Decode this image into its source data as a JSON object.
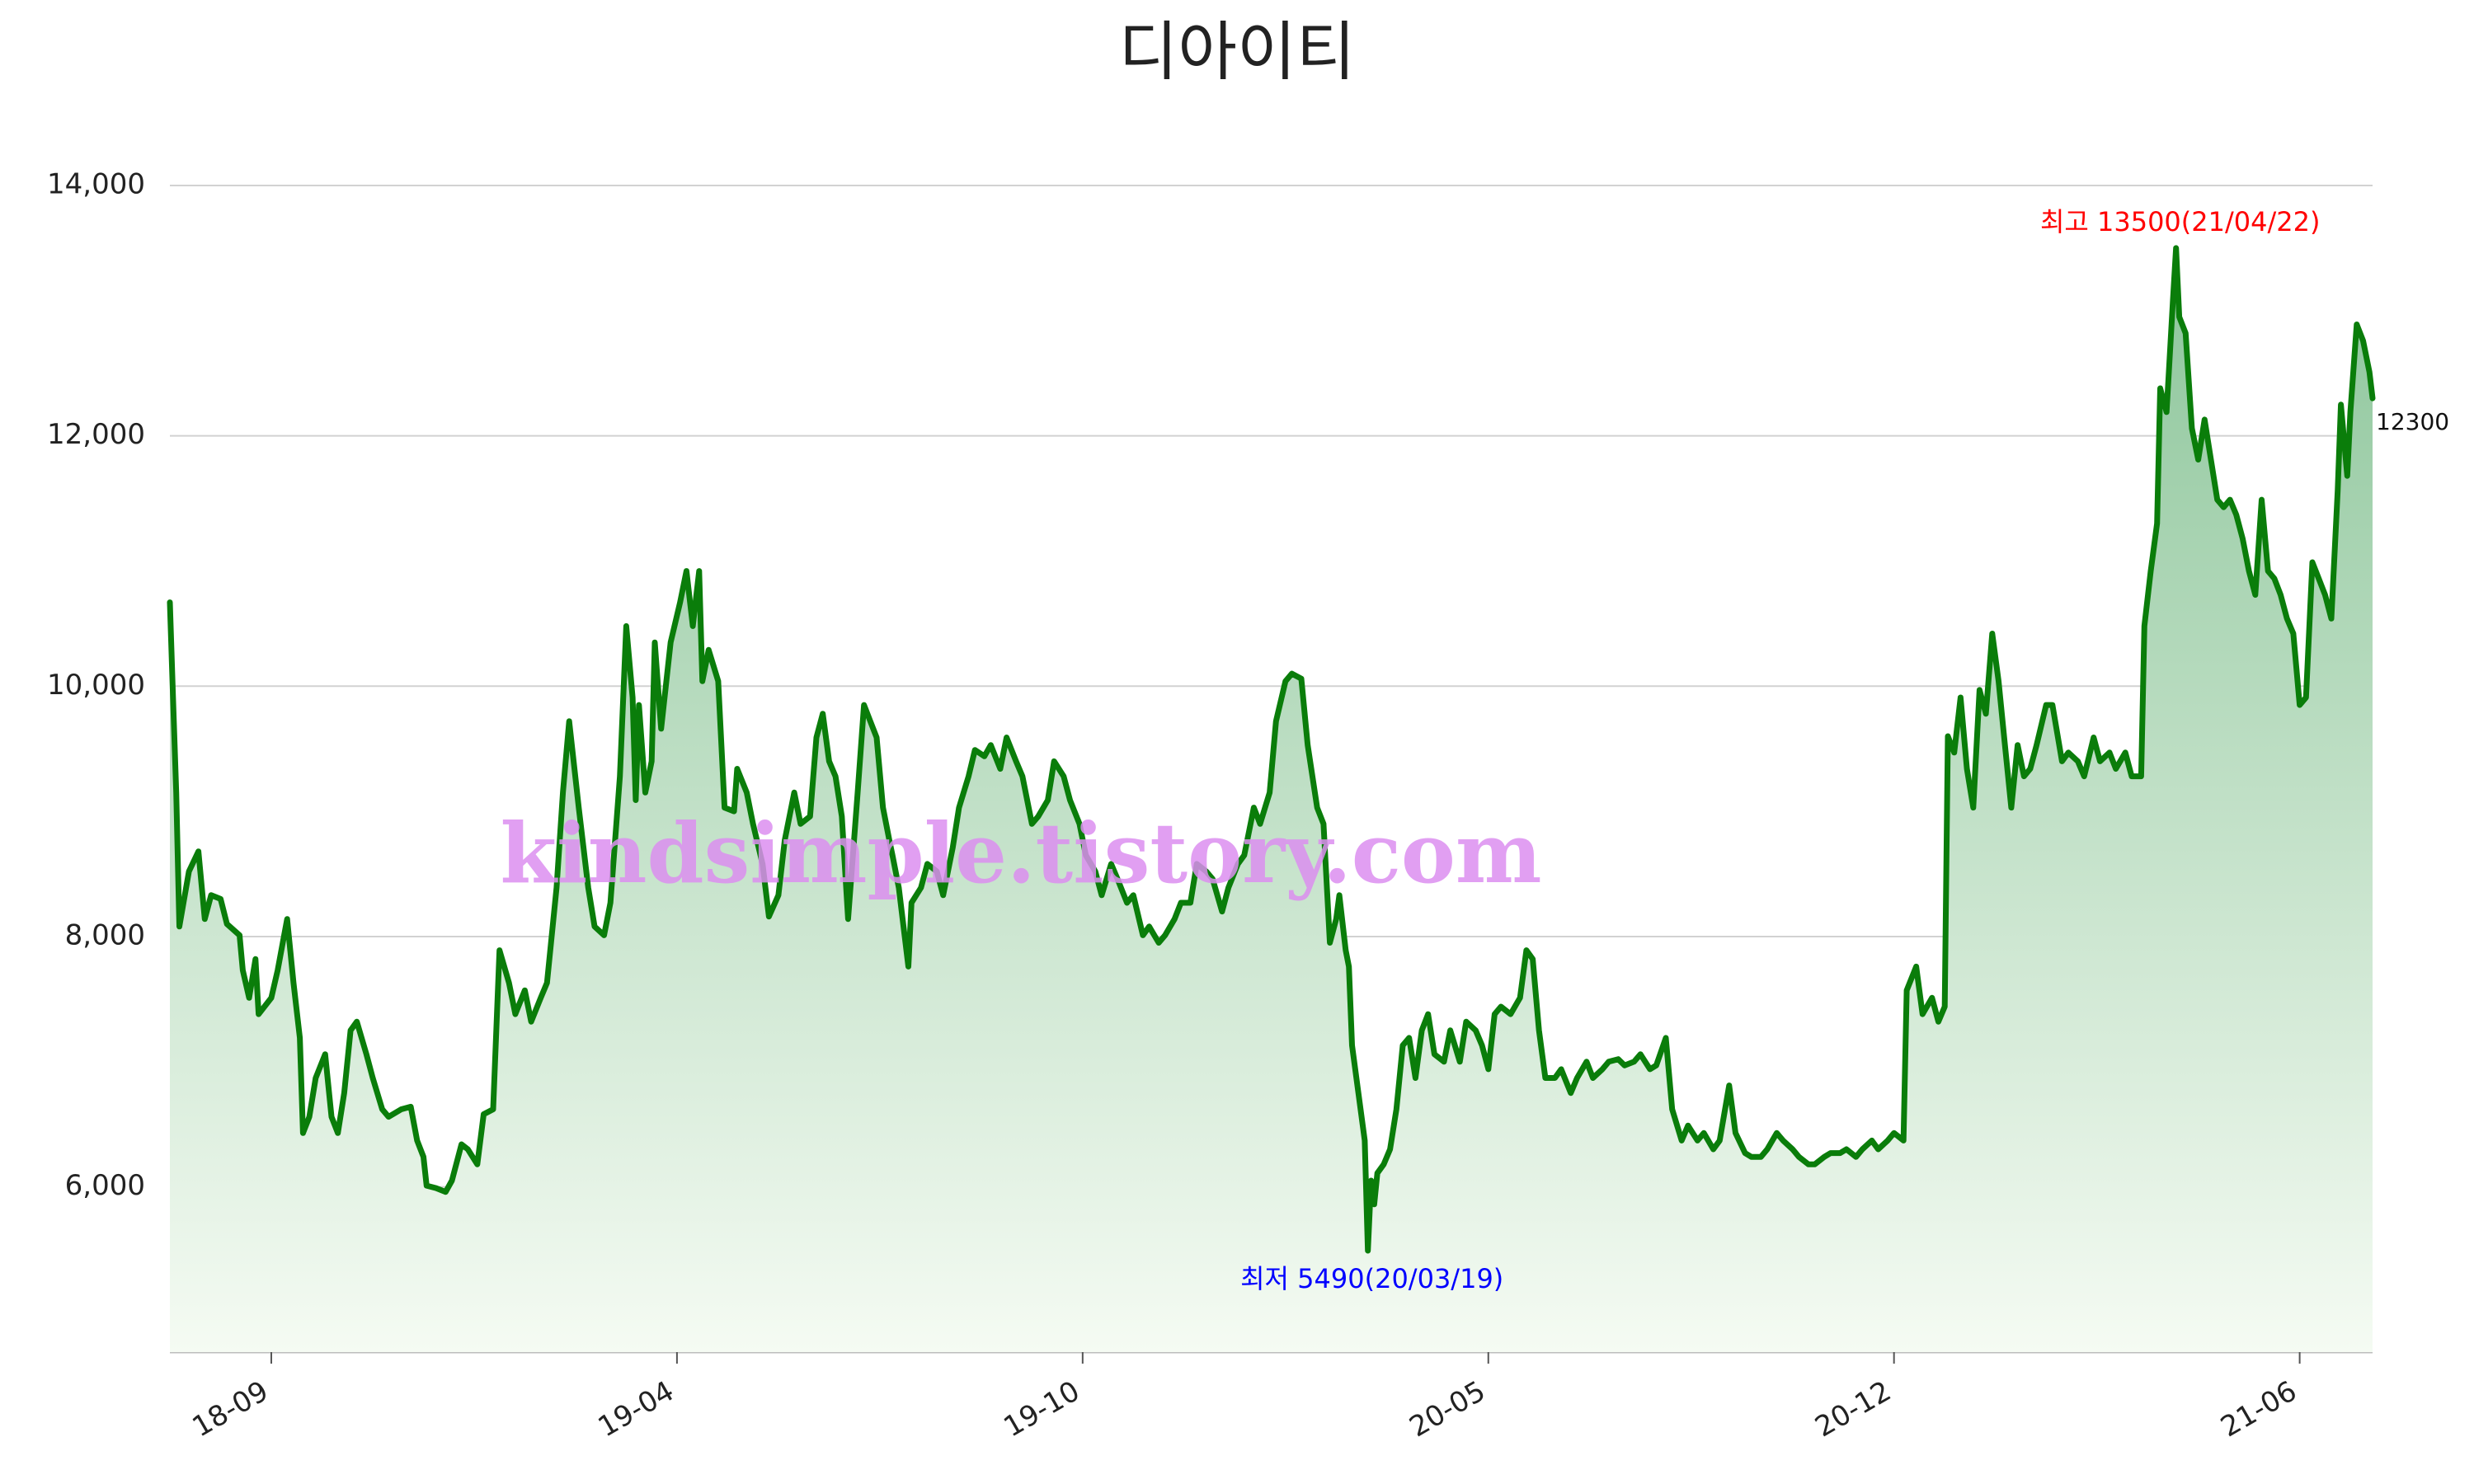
{
  "chart_data": {
    "type": "line",
    "title": "디아이티",
    "color": "#0a7d0a",
    "grid": true,
    "x": [
      0,
      1,
      2,
      3,
      6,
      9,
      11,
      13,
      16,
      18,
      22,
      23,
      25,
      27,
      28,
      32,
      34,
      37,
      39,
      41,
      42,
      44,
      46,
      49,
      51,
      53,
      55,
      57,
      59,
      62,
      64,
      67,
      69,
      73,
      76,
      78,
      80,
      81,
      84,
      87,
      89,
      92,
      94,
      97,
      99,
      102,
      104,
      107,
      109,
      112,
      114,
      117,
      119,
      122,
      124,
      126,
      129,
      132,
      134,
      137,
      139,
      142,
      144,
      146,
      147,
      148,
      150,
      152,
      153,
      155,
      158,
      161,
      163,
      165,
      167,
      168,
      170,
      173,
      175,
      178,
      179,
      182,
      184,
      187,
      189,
      192,
      194,
      197,
      199,
      202,
      204,
      206,
      208,
      210,
      212,
      214,
      217,
      219,
      221,
      223,
      225,
      227,
      228,
      230,
      233,
      234,
      237,
      239,
      242,
      244,
      247,
      249,
      252,
      254,
      257,
      259,
      262,
      264,
      267,
      269,
      272,
      274,
      277,
      279,
      282,
      284,
      287,
      289,
      292,
      294,
      297,
      299,
      302,
      304,
      307,
      309,
      312,
      314,
      317,
      319,
      322,
      324,
      327,
      329,
      332,
      334,
      337,
      339,
      342,
      344,
      347,
      349,
      352,
      354,
      357,
      359,
      362,
      364,
      366,
      368,
      369,
      371,
      372,
      373,
      375,
      377,
      378,
      379,
      380,
      381,
      383,
      385,
      387,
      389,
      391,
      393,
      395,
      397,
      399,
      402,
      404,
      407,
      409,
      412,
      414,
      416,
      418,
      420,
      423,
      426,
      428,
      430,
      432,
      434,
      437,
      439,
      442,
      444,
      447,
      449,
      452,
      454,
      457,
      459,
      462,
      464,
      467,
      469,
      472,
      474,
      477,
      479,
      482,
      484,
      487,
      489,
      492,
      494,
      497,
      499,
      502,
      504,
      507,
      509,
      512,
      514,
      517,
      519,
      522,
      524,
      527,
      529,
      532,
      534,
      537,
      539,
      542,
      544,
      547,
      548,
      551,
      553,
      556,
      558,
      560,
      561,
      563,
      565,
      567,
      569,
      571,
      573,
      575,
      577,
      579,
      581,
      583,
      585,
      587,
      589,
      592,
      594,
      597,
      599,
      602,
      604,
      607,
      609,
      612,
      614,
      617,
      619,
      622,
      623,
      625,
      627,
      628,
      630,
      632,
      633,
      634,
      636,
      638,
      640,
      642,
      644,
      646,
      648,
      650,
      652,
      654,
      656,
      658,
      660,
      662,
      664,
      666,
      668,
      670,
      672,
      674,
      676,
      678,
      680,
      682,
      684,
      685,
      687,
      688,
      690,
      692,
      694,
      695
    ],
    "values": [
      10670,
      9910,
      9150,
      8080,
      8520,
      8680,
      8140,
      8330,
      8300,
      8100,
      8010,
      7730,
      7510,
      7820,
      7380,
      7510,
      7730,
      8140,
      7630,
      7190,
      6430,
      6560,
      6870,
      7060,
      6560,
      6430,
      6750,
      7250,
      7320,
      7060,
      6870,
      6620,
      6560,
      6620,
      6640,
      6370,
      6240,
      6010,
      5990,
      5960,
      6050,
      6340,
      6300,
      6180,
      6580,
      6620,
      7890,
      7630,
      7380,
      7570,
      7320,
      7510,
      7630,
      8390,
      9150,
      9720,
      9030,
      8390,
      8080,
      8010,
      8270,
      9280,
      10480,
      9910,
      9090,
      9850,
      9150,
      9400,
      10350,
      9660,
      10350,
      10670,
      10920,
      10480,
      10920,
      10040,
      10290,
      10040,
      9030,
      9000,
      9340,
      9150,
      8900,
      8580,
      8160,
      8330,
      8770,
      9150,
      8900,
      8960,
      9590,
      9780,
      9400,
      9280,
      8960,
      8140,
      9150,
      9850,
      9720,
      9590,
      9030,
      8770,
      8650,
      8390,
      7760,
      8270,
      8390,
      8580,
      8520,
      8330,
      8710,
      9030,
      9280,
      9490,
      9440,
      9530,
      9340,
      9590,
      9400,
      9280,
      8900,
      8960,
      9090,
      9400,
      9280,
      9090,
      8900,
      8650,
      8520,
      8330,
      8580,
      8460,
      8270,
      8330,
      8010,
      8080,
      7950,
      8010,
      8140,
      8270,
      8270,
      8580,
      8520,
      8460,
      8200,
      8390,
      8580,
      8650,
      9030,
      8900,
      9150,
      9720,
      10040,
      10100,
      10060,
      9530,
      9030,
      8900,
      7950,
      8140,
      8330,
      7890,
      7760,
      7130,
      6750,
      6370,
      5490,
      6050,
      5860,
      6110,
      6180,
      6300,
      6620,
      7130,
      7190,
      6870,
      7250,
      7380,
      7060,
      7000,
      7250,
      7000,
      7320,
      7250,
      7130,
      6940,
      7380,
      7440,
      7380,
      7510,
      7890,
      7820,
      7250,
      6870,
      6870,
      6940,
      6750,
      6870,
      7000,
      6870,
      6940,
      7000,
      7020,
      6970,
      7000,
      7060,
      6940,
      6970,
      7190,
      6620,
      6370,
      6490,
      6370,
      6430,
      6300,
      6370,
      6810,
      6430,
      6270,
      6240,
      6240,
      6300,
      6430,
      6370,
      6300,
      6240,
      6180,
      6180,
      6240,
      6270,
      6270,
      6300,
      6240,
      6300,
      6370,
      6300,
      6370,
      6430,
      6370,
      7570,
      7760,
      7380,
      7510,
      7320,
      7440,
      9600,
      9470,
      9910,
      9340,
      9030,
      9970,
      9780,
      10420,
      10040,
      9530,
      9030,
      9530,
      9280,
      9340,
      9530,
      9850,
      9850,
      9400,
      9470,
      9400,
      9280,
      9590,
      9400,
      9470,
      9340,
      9470,
      9280,
      9280,
      10480,
      10920,
      11300,
      12380,
      12190,
      13080,
      13500,
      12950,
      12820,
      12060,
      11810,
      12130,
      11810,
      11490,
      11430,
      11490,
      11370,
      11180,
      10920,
      10730,
      11490,
      10920,
      10860,
      10730,
      10540,
      10420,
      9850,
      9910,
      10990,
      10860,
      10730,
      10540,
      11560,
      12250,
      11680,
      12190,
      12890,
      12760,
      12510,
      12300
    ],
    "xlim": [
      0,
      695
    ],
    "xticks": [
      {
        "value": 32,
        "label": "18-09"
      },
      {
        "value": 160,
        "label": "19-04"
      },
      {
        "value": 288,
        "label": "19-10"
      },
      {
        "value": 416,
        "label": "20-05"
      },
      {
        "value": 544,
        "label": "20-12"
      },
      {
        "value": 672,
        "label": "21-06"
      }
    ],
    "ylim": [
      4680,
      14000
    ],
    "yticks": [
      {
        "value": 6000,
        "label": "6,000"
      },
      {
        "value": 8000,
        "label": "8,000"
      },
      {
        "value": 10000,
        "label": "10,000"
      },
      {
        "value": 12000,
        "label": "12,000"
      },
      {
        "value": 14000,
        "label": "14,000"
      }
    ],
    "annotations": {
      "max": {
        "text": "최고 13500(21/04/22)",
        "color": "#ff0000"
      },
      "min": {
        "text": "최저 5490(20/03/19)",
        "color": "#0000ff"
      }
    },
    "watermark": "kindsimple.tistory.com"
  }
}
